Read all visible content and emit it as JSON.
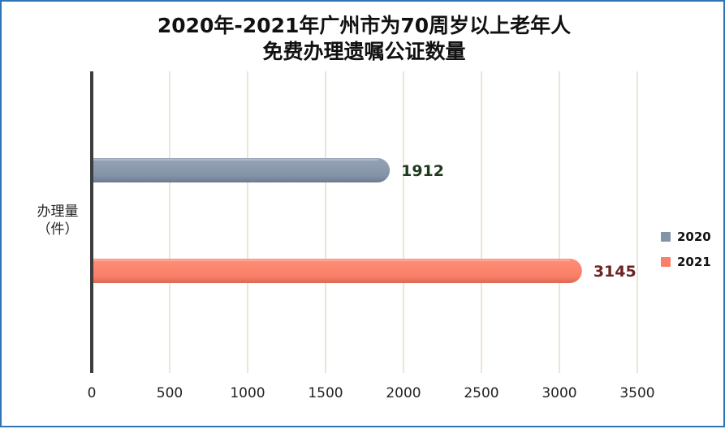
{
  "title_line1": "2020年-2021年广州市为70周岁以上老年人",
  "title_line2": "免费办理遗嘱公证数量",
  "ylabel_line1": "办理量",
  "ylabel_line2": "（件）",
  "chart_data": {
    "type": "bar",
    "orientation": "horizontal",
    "title": "2020年-2021年广州市为70周岁以上老年人免费办理遗嘱公证数量",
    "xlabel": "",
    "ylabel": "办理量（件）",
    "categories": [
      "办理量（件）"
    ],
    "series": [
      {
        "name": "2020",
        "values": [
          1912
        ],
        "color": "#8494a8",
        "label_color": "#1e3a1e"
      },
      {
        "name": "2021",
        "values": [
          3145
        ],
        "color": "#fa7f68",
        "label_color": "#6a2424"
      }
    ],
    "xlim": [
      0,
      3500
    ],
    "xticks": [
      "0",
      "500",
      "1000",
      "1500",
      "2000",
      "2500",
      "3000",
      "3500"
    ],
    "grid": true,
    "legend_position": "right"
  }
}
